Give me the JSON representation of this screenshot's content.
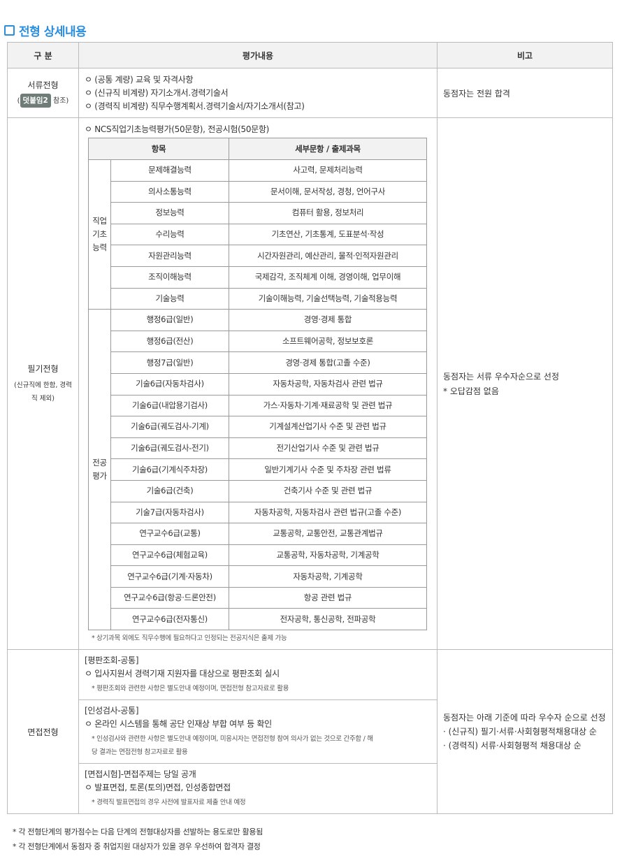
{
  "title": "전형 상세내용",
  "header": {
    "col1": "구 분",
    "col2": "평가내용",
    "col3": "비고"
  },
  "doc": {
    "name": "서류전형",
    "ref_open": "(",
    "badge": "덧붙임2",
    "ref_close": "참조)",
    "items": [
      "ㅇ (공통 계량) 교육 및 자격사항",
      "ㅇ (신규직 비계량) 자기소개서.경력기술서",
      "ㅇ (경력직 비계량) 직무수행계획서.경력기술서/자기소개서(참고)"
    ],
    "remark": "동점자는 전원 합격"
  },
  "written": {
    "name": "필기전형",
    "sub": "(신규직에 한함, 경력직 제외)",
    "intro": "ㅇ NCS직업기초능력평가(50문항), 전공시험(50문항)",
    "th1": "항목",
    "th2": "세부문항 / 출제과목",
    "group1": "직업 기초 능력",
    "ncs": [
      [
        "문제해결능력",
        "사고력, 문제처리능력"
      ],
      [
        "의사소통능력",
        "문서이해, 문서작성, 경청, 언어구사"
      ],
      [
        "정보능력",
        "컴퓨터 활용, 정보처리"
      ],
      [
        "수리능력",
        "기초연산, 기초통계, 도표분석·작성"
      ],
      [
        "자원관리능력",
        "시간자원관리, 예산관리, 물적·인적자원관리"
      ],
      [
        "조직이해능력",
        "국제감각, 조직체계 이해, 경영이해, 업무이해"
      ],
      [
        "기술능력",
        "기술이해능력, 기술선택능력, 기술적용능력"
      ]
    ],
    "group2": "전공 평가",
    "major": [
      [
        "행정6급(일반)",
        "경영·경제 통합"
      ],
      [
        "행정6급(전산)",
        "소프트웨어공학, 정보보호론"
      ],
      [
        "행정7급(일반)",
        "경영·경제 통합(고졸 수준)"
      ],
      [
        "기술6급(자동차검사)",
        "자동차공학, 자동차검사 관련 법규"
      ],
      [
        "기술6급(내압용기검사)",
        "가스·자동차·기계·재료공학 및 관련 법규"
      ],
      [
        "기술6급(궤도검사-기계)",
        "기계설계산업기사 수준 및 관련 법규"
      ],
      [
        "기술6급(궤도검사-전기)",
        "전기산업기사 수준 및 관련 법규"
      ],
      [
        "기술6급(기계식주차장)",
        "일반기계기사 수준 및 주차장 관련 법류"
      ],
      [
        "기술6급(건축)",
        "건축기사 수준 및 관련 법규"
      ],
      [
        "기술7급(자동차검사)",
        "자동차공학, 자동차검사 관련 법규(고졸 수준)"
      ],
      [
        "연구교수6급(교통)",
        "교통공학, 교통안전, 교통관계법규"
      ],
      [
        "연구교수6급(체험교육)",
        "교통공학, 자동차공학, 기계공학"
      ],
      [
        "연구교수6급(기계·자동차)",
        "자동차공학, 기계공학"
      ],
      [
        "연구교수6급(항공·드론안전)",
        "항공 관련 법규"
      ],
      [
        "연구교수6급(전자통신)",
        "전자공학, 통신공학, 전파공학"
      ]
    ],
    "note": "* 상기과목 외에도 직무수행에 필요하다고 인정되는 전공지식은 출제 가능",
    "remark1": "동점자는 서류 우수자순으로 선정",
    "remark2": "* 오답감점 없음"
  },
  "interview": {
    "name": "면접전형",
    "s1": {
      "head": "[평판조회-공통]",
      "item": "ㅇ 입사지원서 경력기재 지원자를 대상으로 평판조회 실시",
      "note": "* 평판조회와 관련한 사항은 별도안내 예정이며, 면접전형 참고자료로 활용"
    },
    "s2": {
      "head": "[인성검사-공통]",
      "item": "ㅇ 온라인 시스템을 통해 공단 인재상 부합 여부 등 확인",
      "note": "* 인성검사와 관련한 사항은 별도안내 예정이며, 미응시자는 면접전형 참여 의사가 없는 것으로 간주함 / 해당 결과는 면접전형 참고자료로 활용"
    },
    "s3": {
      "head": "[면접시험]-면접주제는 당일 공개",
      "item": "ㅇ 발표면접, 토론(토의)면접, 인성종합면접",
      "note": "* 경력직 발표면접의 경우 사전에 발표자료 제출 안내 예정"
    },
    "remark1": "동점자는 아래 기준에 따라 우수자 순으로 선정",
    "remark2": "· (신규직) 필기·서류·사회형평적채용대상 순",
    "remark3": "· (경력직) 서류·사회형평적 채용대상 순"
  },
  "footnotes": [
    "*  각 전형단계의 평가점수는 다음 단계의 전형대상자를 선발하는 용도로만 활용됨",
    "*  각 전형단계에서 동점자 중 취업지원 대상자가 있을 경우 우선하여 합격자 결정"
  ]
}
